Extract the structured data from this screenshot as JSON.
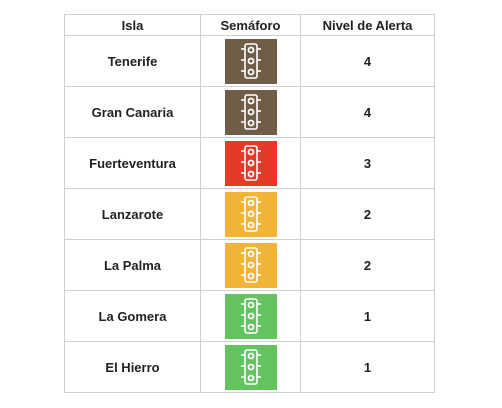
{
  "headers": {
    "isla": "Isla",
    "semaforo": "Semáforo",
    "nivel": "Nivel de Alerta"
  },
  "colors": {
    "level4": "#6f5d48",
    "level3": "#e43a26",
    "level2": "#f2b437",
    "level1": "#62c35f"
  },
  "rows": [
    {
      "isla": "Tenerife",
      "nivel": "4",
      "color": "#6f5d48",
      "icon": "traffic-light-icon"
    },
    {
      "isla": "Gran Canaria",
      "nivel": "4",
      "color": "#6f5d48",
      "icon": "traffic-light-icon"
    },
    {
      "isla": "Fuerteventura",
      "nivel": "3",
      "color": "#e43a26",
      "icon": "traffic-light-icon"
    },
    {
      "isla": "Lanzarote",
      "nivel": "2",
      "color": "#f2b437",
      "icon": "traffic-light-icon"
    },
    {
      "isla": "La Palma",
      "nivel": "2",
      "color": "#f2b437",
      "icon": "traffic-light-icon"
    },
    {
      "isla": "La Gomera",
      "nivel": "1",
      "color": "#62c35f",
      "icon": "traffic-light-icon"
    },
    {
      "isla": "El Hierro",
      "nivel": "1",
      "color": "#62c35f",
      "icon": "traffic-light-icon"
    }
  ]
}
